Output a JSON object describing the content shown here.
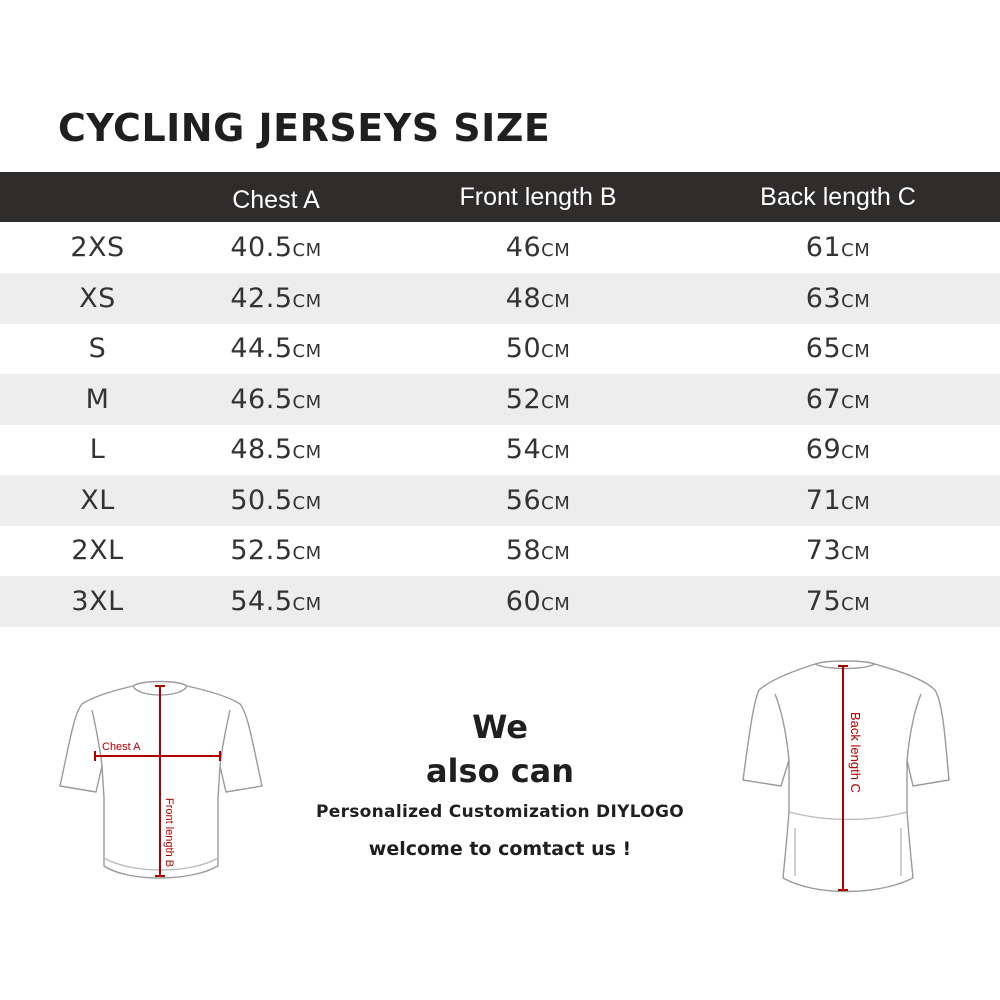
{
  "title": "CYCLING JERSEYS SIZE",
  "columns": [
    "",
    "Chest A",
    "Front length B",
    "Back length C"
  ],
  "unit": "CM",
  "rows": [
    {
      "size": "2XS",
      "chest": "40.5",
      "front": "46",
      "back": "61"
    },
    {
      "size": "XS",
      "chest": "42.5",
      "front": "48",
      "back": "63"
    },
    {
      "size": "S",
      "chest": "44.5",
      "front": "50",
      "back": "65"
    },
    {
      "size": "M",
      "chest": "46.5",
      "front": "52",
      "back": "67"
    },
    {
      "size": "L",
      "chest": "48.5",
      "front": "54",
      "back": "69"
    },
    {
      "size": "XL",
      "chest": "50.5",
      "front": "56",
      "back": "71"
    },
    {
      "size": "2XL",
      "chest": "52.5",
      "front": "58",
      "back": "73"
    },
    {
      "size": "3XL",
      "chest": "54.5",
      "front": "60",
      "back": "75"
    }
  ],
  "diagram": {
    "front_chest_label": "Chest A",
    "front_length_label": "Front length B",
    "back_length_label": "Back length C"
  },
  "promo": {
    "line1": "We",
    "line2": "also can",
    "line3": "Personalized Customization DIYLOGO",
    "line4": "welcome to comtact us !"
  },
  "colors": {
    "header_bg": "#2f2c2c",
    "alt_row_bg": "#ededed",
    "measure_line": "#b00000"
  }
}
